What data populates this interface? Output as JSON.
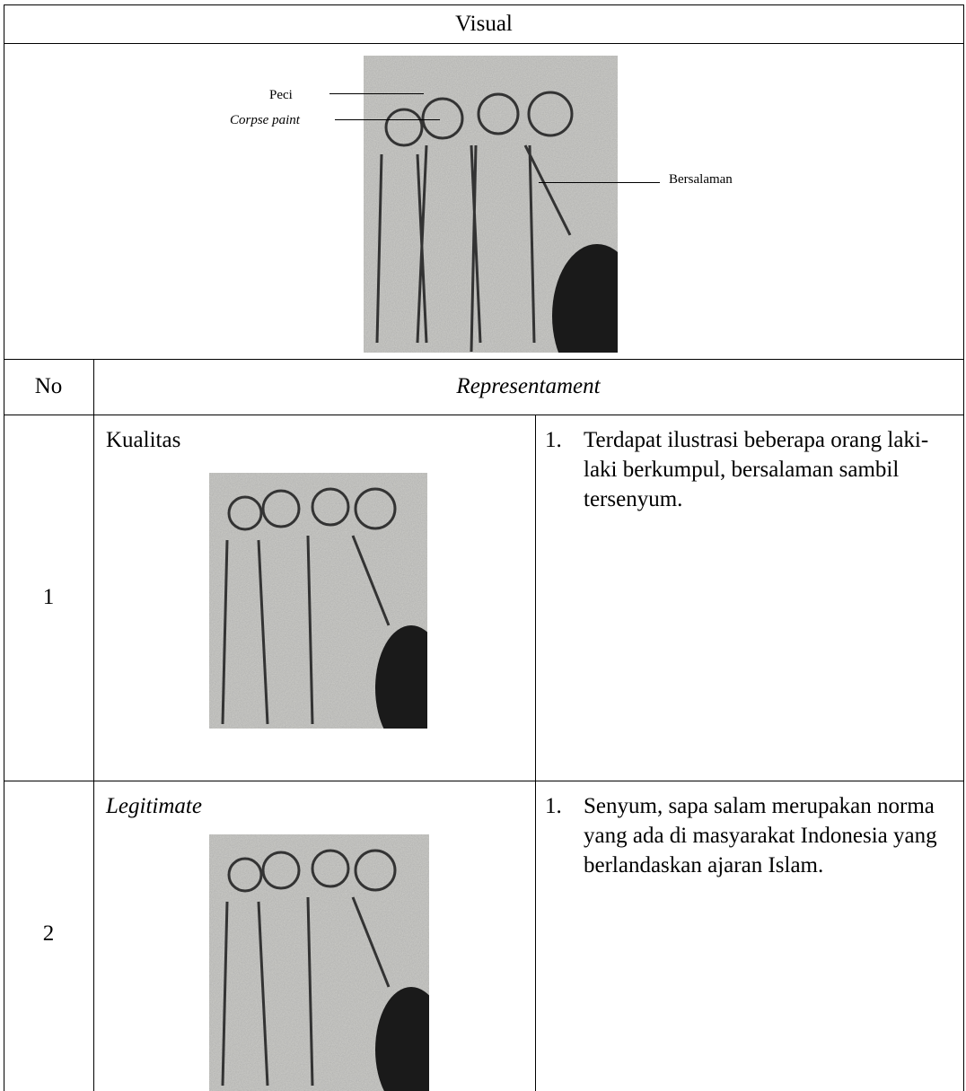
{
  "table": {
    "visual_header": "Visual",
    "annotations": {
      "peci": "Peci",
      "corpse_paint": "Corpse paint",
      "bersalaman": "Bersalaman"
    },
    "columns": [
      "No",
      "Representament"
    ],
    "rows": [
      {
        "no": "1",
        "label": "Kualitas",
        "items": [
          {
            "number": "1.",
            "text": "Terdapat ilustrasi beberapa orang laki-laki berkumpul, bersalaman sambil tersenyum."
          }
        ]
      },
      {
        "no": "2",
        "label": "Legitimate",
        "items": [
          {
            "number": "1.",
            "text": "Senyum, sapa salam merupakan norma yang ada di masyarakat Indonesia yang berlandaskan ajaran Islam."
          }
        ]
      }
    ]
  }
}
